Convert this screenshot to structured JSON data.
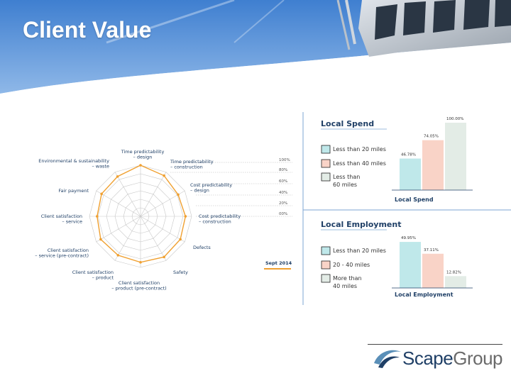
{
  "slide": {
    "title": "Client Value"
  },
  "radar": {
    "axes": [
      "Time predictability – design",
      "Time predictability – construction",
      "Cost predictability – design",
      "Cost predictability – construction",
      "Defects",
      "Safety",
      "Client satisfaction – product (pre-contract)",
      "Client satisfaction – product",
      "Client satisfaction – service (pre-contract)",
      "Client satisfaction – service",
      "Fair payment",
      "Environmental & sustainability – waste"
    ],
    "scale_labels": [
      "100%",
      "80%",
      "60%",
      "40%",
      "20%",
      "00%"
    ],
    "series_label": "Sept 2014",
    "series_color": "#f0a030",
    "values": [
      1.0,
      0.92,
      0.85,
      0.88,
      0.9,
      0.92,
      0.9,
      0.88,
      0.9,
      0.85,
      0.88,
      0.9
    ]
  },
  "local_spend": {
    "title": "Local Spend",
    "chart_label": "Local Spend",
    "legend": [
      {
        "label_lines": [
          "Less than 20 miles"
        ],
        "color": "#bfe8ea"
      },
      {
        "label_lines": [
          "Less than 40 miles"
        ],
        "color": "#f9d3c7"
      },
      {
        "label_lines": [
          "Less than",
          "60 miles"
        ],
        "color": "#e3ece6"
      }
    ],
    "bars": [
      {
        "value": 46.78,
        "label": "46.78%",
        "color": "#bfe8ea"
      },
      {
        "value": 74.05,
        "label": "74.05%",
        "color": "#f9d3c7"
      },
      {
        "value": 100.0,
        "label": "100.00%",
        "color": "#e3ece6"
      }
    ]
  },
  "local_employment": {
    "title": "Local Employment",
    "chart_label": "Local Employment",
    "legend": [
      {
        "label_lines": [
          "Less than 20 miles"
        ],
        "color": "#bfe8ea"
      },
      {
        "label_lines": [
          "20 - 40 miles"
        ],
        "color": "#f9d3c7"
      },
      {
        "label_lines": [
          "More than",
          "40 miles"
        ],
        "color": "#e3ece6"
      }
    ],
    "bars": [
      {
        "value": 49.95,
        "label": "49.95%",
        "color": "#bfe8ea"
      },
      {
        "value": 37.11,
        "label": "37.11%",
        "color": "#f9d3c7"
      },
      {
        "value": 12.82,
        "label": "12.82%",
        "color": "#e3ece6"
      }
    ]
  },
  "logo": {
    "brand": "Scape",
    "group": "Group",
    "icon": "scape-swoosh-icon"
  }
}
